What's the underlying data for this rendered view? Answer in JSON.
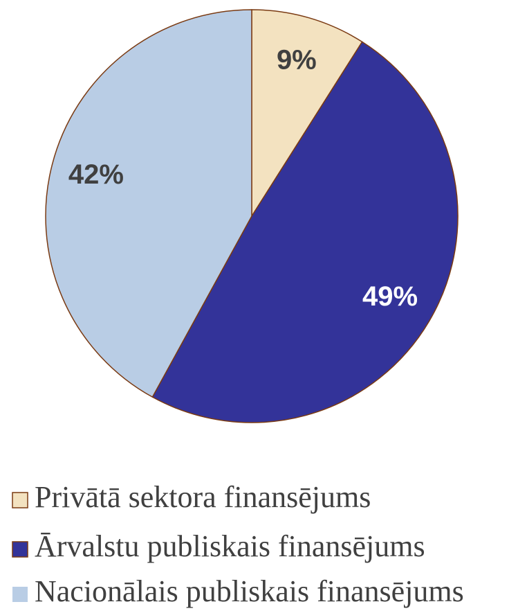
{
  "chart_data": {
    "type": "pie",
    "categories": [
      "Privātā sektora finansējums",
      "Ārvalstu publiskais finansējums",
      "Nacionālais publiskais finansējums"
    ],
    "values": [
      9,
      49,
      42
    ],
    "value_labels": [
      "9%",
      "49%",
      "42%"
    ],
    "colors": [
      "#f3e2c0",
      "#333399",
      "#b9cde5"
    ],
    "label_colors": [
      "#404040",
      "#ffffff",
      "#404040"
    ],
    "legend": "bottom"
  }
}
